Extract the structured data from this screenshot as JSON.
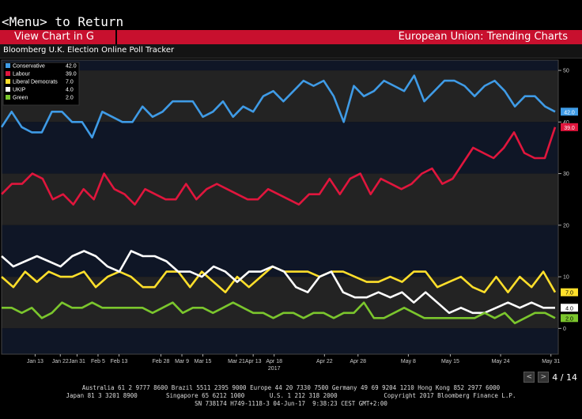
{
  "header": {
    "menu_text": "<Menu> to Return",
    "view_chart_label": "View Chart in G",
    "right_title": "European Union: Trending Charts",
    "chart_title": "Bloomberg U.K. Election Online Poll Tracker"
  },
  "pager": {
    "prev_icon": "chevron-left-icon",
    "next_icon": "chevron-right-icon",
    "text": "4 / 14",
    "prev_glyph": "<",
    "next_glyph": ">"
  },
  "footer": {
    "line1": "Australia 61 2 9777 8600 Brazil 5511 2395 9000 Europe 44 20 7330 7500 Germany 49 69 9204 1210 Hong Kong 852 2977 6000",
    "line2": "Japan 81 3 3201 8900        Singapore 65 6212 1000       U.S. 1 212 318 2000             Copyright 2017 Bloomberg Finance L.P.",
    "line3": "SN 738174 H749-1118-3 04-Jun-17  9:38:23 CEST GMT+2:00"
  },
  "colors": {
    "background": "#000000",
    "accent_red": "#c8102e",
    "band_dark": "#0f1626",
    "band_light": "#232323"
  },
  "chart_data": {
    "type": "line",
    "title": "Bloomberg U.K. Election Online Poll Tracker",
    "ylim": [
      -5,
      52
    ],
    "yticks": [
      0,
      10,
      20,
      30,
      40,
      50
    ],
    "grid": true,
    "legend_position": "top-left",
    "x_tick_labels": [
      "Jan 13",
      "Jan 22",
      "Jan 31",
      "Feb 5",
      "Feb 13",
      "Feb 28",
      "Mar 9",
      "Mar 15",
      "Mar 21",
      "Apr 13",
      "Apr 18",
      "Apr 22",
      "Apr 28",
      "May 8",
      "May 15",
      "May 24",
      "May 31"
    ],
    "x_tick_positions": [
      4.0,
      7.0,
      9.0,
      11.5,
      14.0,
      19.0,
      21.5,
      24.0,
      28.0,
      30.0,
      32.5,
      38.5,
      42.5,
      48.5,
      53.5,
      59.5,
      65.5
    ],
    "year_label": "2017",
    "year_position": 32.5,
    "n_points": 67,
    "series": [
      {
        "name": "Conservative",
        "color": "#3f9be6",
        "last": "42.0",
        "values": [
          39,
          42,
          39,
          38,
          38,
          42,
          42,
          40,
          40,
          37,
          42,
          41,
          40,
          40,
          43,
          41,
          42,
          44,
          44,
          44,
          41,
          42,
          44,
          41,
          43,
          42,
          45,
          46,
          44,
          46,
          48,
          47,
          48,
          45,
          40,
          47,
          45,
          46,
          48,
          47,
          46,
          49,
          44,
          46,
          48,
          48,
          47,
          45,
          47,
          48,
          46,
          43,
          45,
          45,
          43,
          42
        ]
      },
      {
        "name": "Labour",
        "color": "#e0163d",
        "last": "39.0",
        "values": [
          26,
          28,
          28,
          30,
          29,
          25,
          26,
          24,
          27,
          25,
          30,
          27,
          26,
          24,
          27,
          26,
          25,
          25,
          28,
          25,
          27,
          28,
          27,
          26,
          25,
          25,
          27,
          26,
          25,
          24,
          26,
          26,
          29,
          26,
          29,
          30,
          26,
          29,
          28,
          27,
          28,
          30,
          31,
          28,
          29,
          32,
          35,
          34,
          33,
          35,
          38,
          34,
          33,
          33,
          39
        ]
      },
      {
        "name": "Liberal Democrats",
        "color": "#ffdf2b",
        "last": "7.0",
        "values": [
          10,
          8,
          11,
          9,
          11,
          10,
          10,
          11,
          8,
          10,
          11,
          10,
          8,
          8,
          11,
          11,
          8,
          11,
          9,
          7,
          10,
          8,
          10,
          12,
          11,
          11,
          11,
          10,
          11,
          11,
          10,
          9,
          9,
          10,
          9,
          11,
          11,
          8,
          9,
          10,
          8,
          7,
          10,
          7,
          10,
          8,
          11,
          7
        ]
      },
      {
        "name": "UKIP",
        "color": "#ffffff",
        "last": "4.0",
        "values": [
          14,
          12,
          13,
          14,
          13,
          12,
          14,
          15,
          14,
          12,
          11,
          15,
          14,
          14,
          13,
          11,
          11,
          10,
          12,
          11,
          9,
          11,
          11,
          12,
          11,
          8,
          7,
          10,
          11,
          7,
          6,
          6,
          7,
          6,
          7,
          5,
          7,
          5,
          3,
          4,
          3,
          3,
          4,
          5,
          4,
          5,
          4,
          4
        ]
      },
      {
        "name": "Green",
        "color": "#7bc62d",
        "last": "2.0",
        "values": [
          4,
          4,
          3,
          4,
          2,
          3,
          5,
          4,
          4,
          5,
          4,
          4,
          4,
          4,
          4,
          3,
          4,
          5,
          3,
          4,
          4,
          3,
          4,
          5,
          4,
          3,
          3,
          2,
          3,
          3,
          2,
          3,
          3,
          2,
          3,
          3,
          5,
          2,
          2,
          3,
          4,
          3,
          2,
          2,
          2,
          2,
          2,
          2,
          3,
          2,
          3,
          1,
          2,
          3,
          3,
          2
        ]
      }
    ]
  }
}
